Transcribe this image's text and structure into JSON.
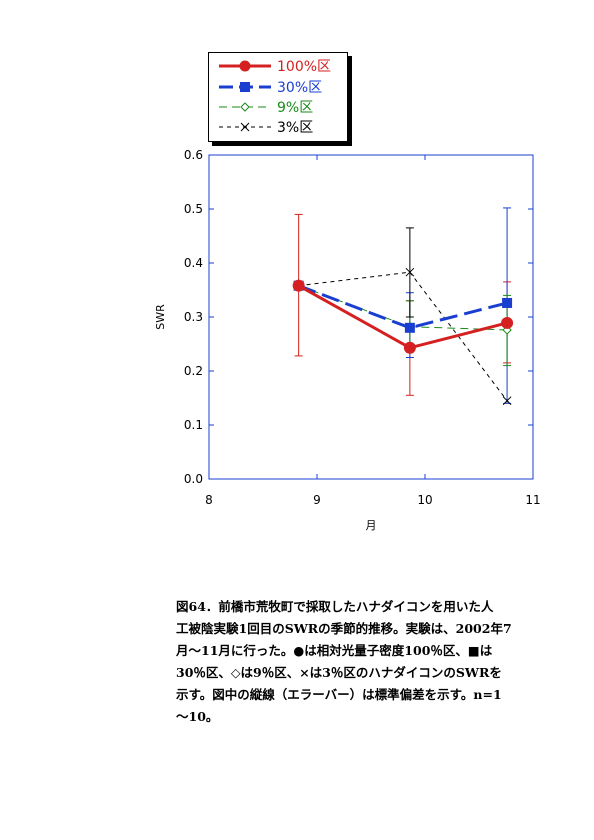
{
  "chart_data": {
    "type": "line",
    "x": [
      9,
      10,
      11
    ],
    "xlim": [
      8,
      11
    ],
    "ylim": [
      0,
      0.6
    ],
    "xticks": [
      8,
      9,
      10,
      11
    ],
    "yticks": [
      0.0,
      0.1,
      0.2,
      0.3,
      0.4,
      0.5,
      0.6
    ],
    "xtick_labels": [
      "8",
      "9",
      "10",
      "11"
    ],
    "ytick_labels": [
      "0.0",
      "0.1",
      "0.2",
      "0.3",
      "0.4",
      "0.5",
      "0.6"
    ],
    "xlabel": "月",
    "ylabel": "SWR",
    "grid": false,
    "legend_position": "top-left",
    "series": [
      {
        "name": "100%区",
        "color": "#d42020",
        "dash": "solid",
        "marker": "circle",
        "x": [
          8.83,
          9.86,
          10.76
        ],
        "values": [
          0.358,
          0.243,
          0.289
        ],
        "err_lower": [
          0.228,
          0.155,
          0.215
        ],
        "err_upper": [
          0.49,
          0.33,
          0.365
        ]
      },
      {
        "name": "30%区",
        "color": "#1a3fd0",
        "dash": "long-dash",
        "marker": "square",
        "x": [
          8.83,
          9.86,
          10.76
        ],
        "values": [
          0.358,
          0.28,
          0.326
        ],
        "err_lower": [
          0.358,
          0.225,
          0.14
        ],
        "err_upper": [
          0.358,
          0.345,
          0.502
        ]
      },
      {
        "name": "9%区",
        "color": "#1a8a1a",
        "dash": "dash",
        "marker": "diamond",
        "x": [
          8.83,
          9.86,
          10.76
        ],
        "values": [
          0.358,
          0.282,
          0.276
        ],
        "err_lower": [
          0.358,
          0.235,
          0.21
        ],
        "err_upper": [
          0.358,
          0.33,
          0.34
        ]
      },
      {
        "name": "3%区",
        "color": "#000000",
        "dash": "dot",
        "marker": "cross",
        "x": [
          8.83,
          9.86,
          10.76
        ],
        "values": [
          0.358,
          0.383,
          0.145
        ],
        "err_lower": [
          0.358,
          0.3,
          0.145
        ],
        "err_upper": [
          0.358,
          0.465,
          0.145
        ]
      }
    ]
  },
  "caption": {
    "lines": [
      "図64．前橋市荒牧町で採取したハナダイコンを用いた人",
      "工被陰実験1回目のSWRの季節的推移。実験は、2002年7",
      "月～11月に行った。●は相対光量子密度100％区、■は",
      "30％区、◇は9％区、×は3％区のハナダイコンのSWRを",
      "示す。図中の縦線（エラーバー）は標準偏差を示す。n=1",
      "～10。"
    ]
  }
}
